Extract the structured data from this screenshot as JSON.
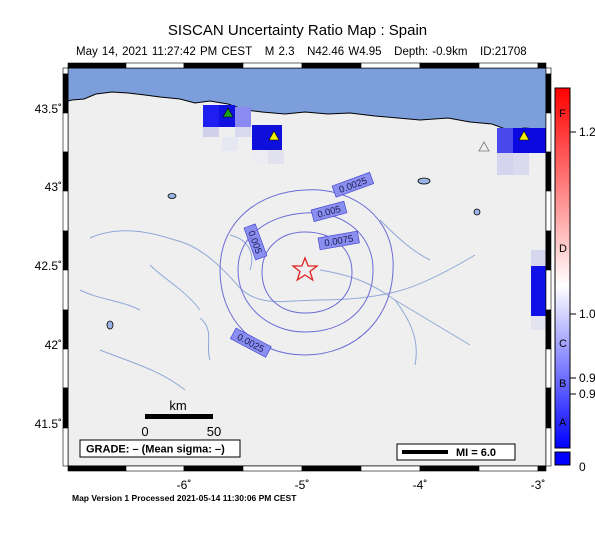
{
  "title": "SISCAN Uncertainty Ratio Map : Spain",
  "event_info": {
    "date": "May 14, 2021 11:27:42 PM CEST",
    "magnitude": "M 2.3",
    "location": "N42.46 W4.95",
    "depth": "Depth: -0.9km",
    "id": "ID:21708"
  },
  "footer": "Map Version 1 Processed 2021-05-14 11:30:06 PM CEST",
  "axes": {
    "x_ticks": [
      "-6˚",
      "-5˚",
      "-4˚",
      "-3˚"
    ],
    "y_ticks": [
      "43.5˚",
      "43˚",
      "42.5˚",
      "42˚",
      "41.5˚"
    ]
  },
  "contours": [
    "0.0025",
    "0.005",
    "0.0075",
    "0.005",
    "0.0025"
  ],
  "grade_box": "GRADE: – (Mean sigma: –)",
  "mi_legend": "MI = 6.0",
  "scale_bar": {
    "unit": "km",
    "start": "0",
    "end": "50"
  },
  "colorbar": {
    "grades": [
      "F",
      "D",
      "C",
      "B",
      "A"
    ],
    "values": [
      "1.2",
      "1.0",
      "0.9",
      "0.9",
      "0"
    ],
    "colors": {
      "top": "#ff0000",
      "mid": "#ffffff",
      "bottom": "#0000ff"
    }
  },
  "colors": {
    "sea": "#7c9fdc",
    "land": "#efefef",
    "epicenter": "#e02020",
    "contour": "#6b6bd6"
  }
}
